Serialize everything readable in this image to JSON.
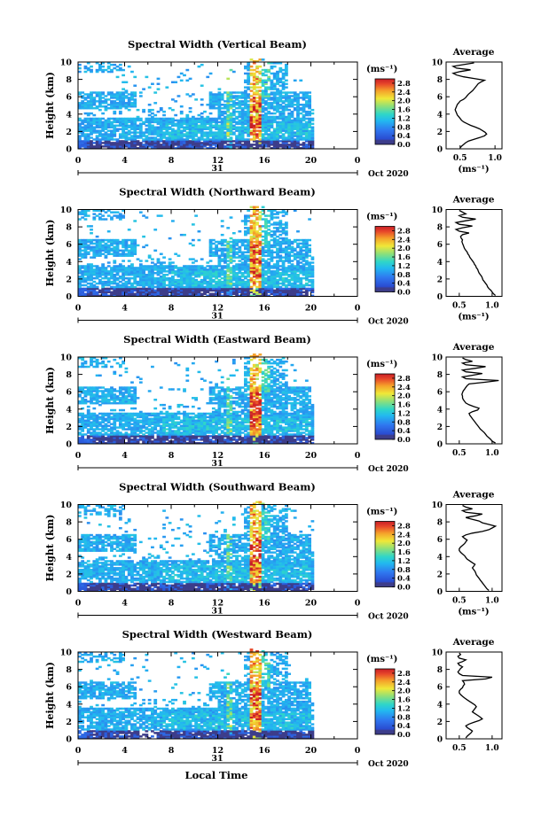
{
  "figure": {
    "xlabel": "Local Time",
    "date_day": "31",
    "date_label": "Oct 2020"
  },
  "chart_data": [
    {
      "type": "heatmap",
      "title": "Spectral Width (Vertical Beam)",
      "ylabel": "Height (km)",
      "x_ticks": [
        "0",
        "4",
        "8",
        "12",
        "16",
        "20",
        "0"
      ],
      "xlim": [
        0,
        24
      ],
      "y_ticks": [
        "0",
        "2",
        "4",
        "6",
        "8",
        "10"
      ],
      "ylim": [
        0,
        10
      ],
      "colorbar": {
        "unit": "(ms⁻¹)",
        "ticks": [
          "0.0",
          "0.4",
          "0.8",
          "1.2",
          "1.6",
          "2.0",
          "2.4",
          "2.8"
        ],
        "range": [
          0,
          3.0
        ]
      },
      "average": {
        "title": "Average",
        "xlabel": "(ms⁻¹)",
        "x_ticks": [
          "0.5",
          "1.0"
        ],
        "xlim": [
          0.3,
          1.1
        ],
        "profile": [
          0.5,
          0.52,
          0.55,
          0.58,
          0.62,
          0.7,
          0.78,
          0.85,
          0.88,
          0.86,
          0.82,
          0.78,
          0.72,
          0.65,
          0.6,
          0.55,
          0.52,
          0.5,
          0.48,
          0.46,
          0.45,
          0.44,
          0.43,
          0.44,
          0.45,
          0.46,
          0.48,
          0.5,
          0.55,
          0.58,
          0.6,
          0.62,
          0.65,
          0.68,
          0.7,
          0.72,
          0.74,
          0.76,
          0.8,
          0.85,
          0.7,
          0.55,
          0.45,
          0.4,
          0.5,
          0.65,
          0.45,
          0.4,
          0.55,
          0.7
        ]
      }
    },
    {
      "type": "heatmap",
      "title": "Spectral Width (Northward Beam)",
      "ylabel": "Height (km)",
      "x_ticks": [
        "0",
        "4",
        "8",
        "12",
        "16",
        "20",
        "0"
      ],
      "xlim": [
        0,
        24
      ],
      "y_ticks": [
        "0",
        "2",
        "4",
        "6",
        "8",
        "10"
      ],
      "ylim": [
        0,
        10
      ],
      "colorbar": {
        "unit": "(ms⁻¹)",
        "ticks": [
          "0.0",
          "0.4",
          "0.8",
          "1.2",
          "1.6",
          "2.0",
          "2.4",
          "2.8"
        ],
        "range": [
          0,
          3.0
        ]
      },
      "average": {
        "title": "Average",
        "xlabel": "(ms⁻¹)",
        "x_ticks": [
          "0.5",
          "1.0"
        ],
        "xlim": [
          0.3,
          1.15
        ],
        "profile": [
          1.05,
          1.02,
          1.0,
          0.98,
          0.95,
          0.93,
          0.92,
          0.9,
          0.88,
          0.86,
          0.85,
          0.84,
          0.82,
          0.8,
          0.79,
          0.78,
          0.76,
          0.75,
          0.73,
          0.72,
          0.7,
          0.68,
          0.66,
          0.65,
          0.63,
          0.62,
          0.6,
          0.58,
          0.57,
          0.56,
          0.55,
          0.54,
          0.55,
          0.53,
          0.52,
          0.55,
          0.65,
          0.5,
          0.45,
          0.55,
          0.7,
          0.5,
          0.45,
          0.6,
          0.75,
          0.55,
          0.5,
          0.6,
          0.55,
          0.5
        ]
      }
    },
    {
      "type": "heatmap",
      "title": "Spectral Width (Eastward Beam)",
      "ylabel": "Height (km)",
      "x_ticks": [
        "0",
        "4",
        "8",
        "12",
        "16",
        "20",
        "0"
      ],
      "xlim": [
        0,
        24
      ],
      "y_ticks": [
        "0",
        "2",
        "4",
        "6",
        "8",
        "10"
      ],
      "ylim": [
        0,
        10
      ],
      "colorbar": {
        "unit": "(ms⁻¹)",
        "ticks": [
          "0.0",
          "0.4",
          "0.8",
          "1.2",
          "1.6",
          "2.0",
          "2.4",
          "2.8"
        ],
        "range": [
          0,
          3.0
        ]
      },
      "average": {
        "title": "Average",
        "xlabel": "",
        "x_ticks": [
          "0.5",
          "1.0"
        ],
        "xlim": [
          0.3,
          1.15
        ],
        "profile": [
          1.05,
          1.0,
          0.98,
          0.95,
          0.92,
          0.9,
          0.88,
          0.85,
          0.82,
          0.8,
          0.78,
          0.76,
          0.74,
          0.72,
          0.7,
          0.68,
          0.66,
          0.65,
          0.7,
          0.78,
          0.8,
          0.72,
          0.65,
          0.6,
          0.58,
          0.56,
          0.55,
          0.55,
          0.54,
          0.55,
          0.56,
          0.58,
          0.6,
          0.62,
          0.65,
          0.9,
          1.1,
          0.6,
          0.55,
          0.7,
          0.85,
          0.6,
          0.55,
          0.75,
          0.9,
          0.6,
          0.55,
          0.7,
          0.6,
          0.55
        ]
      }
    },
    {
      "type": "heatmap",
      "title": "Spectral Width (Southward Beam)",
      "ylabel": "Height (km)",
      "x_ticks": [
        "0",
        "4",
        "8",
        "12",
        "16",
        "20",
        "0"
      ],
      "xlim": [
        0,
        24
      ],
      "y_ticks": [
        "0",
        "2",
        "4",
        "6",
        "8",
        "10"
      ],
      "ylim": [
        0,
        10
      ],
      "colorbar": {
        "unit": "(ms⁻¹)",
        "ticks": [
          "0.0",
          "0.4",
          "0.8",
          "1.2",
          "1.6",
          "2.0",
          "2.4",
          "2.8"
        ],
        "range": [
          0,
          3.0
        ]
      },
      "average": {
        "title": "Average",
        "xlabel": "(ms⁻¹)",
        "x_ticks": [
          "0.5",
          "1.0"
        ],
        "xlim": [
          0.3,
          1.15
        ],
        "profile": [
          0.95,
          0.92,
          0.9,
          0.88,
          0.86,
          0.84,
          0.82,
          0.8,
          0.78,
          0.76,
          0.75,
          0.74,
          0.72,
          0.7,
          0.72,
          0.74,
          0.7,
          0.66,
          0.62,
          0.6,
          0.58,
          0.55,
          0.52,
          0.5,
          0.5,
          0.52,
          0.55,
          0.58,
          0.6,
          0.62,
          0.58,
          0.55,
          0.6,
          0.7,
          0.85,
          0.95,
          1.0,
          1.05,
          0.95,
          0.85,
          0.8,
          0.7,
          0.6,
          0.75,
          0.85,
          0.6,
          0.55,
          0.7,
          0.6,
          0.55
        ]
      }
    },
    {
      "type": "heatmap",
      "title": "Spectral Width (Westward Beam)",
      "ylabel": "Height (km)",
      "x_ticks": [
        "0",
        "4",
        "8",
        "12",
        "16",
        "20",
        "0"
      ],
      "xlim": [
        0,
        24
      ],
      "y_ticks": [
        "0",
        "2",
        "4",
        "6",
        "8",
        "10"
      ],
      "ylim": [
        0,
        10
      ],
      "colorbar": {
        "unit": "(ms⁻¹)",
        "ticks": [
          "0.0",
          "0.4",
          "0.8",
          "1.2",
          "1.6",
          "2.0",
          "2.4",
          "2.8"
        ],
        "range": [
          0,
          3.0
        ]
      },
      "average": {
        "title": "Average",
        "xlabel": "",
        "x_ticks": [
          "0.5",
          "1.0"
        ],
        "xlim": [
          0.3,
          1.15
        ],
        "profile": [
          0.6,
          0.62,
          0.65,
          0.68,
          0.7,
          0.66,
          0.62,
          0.6,
          0.65,
          0.72,
          0.8,
          0.85,
          0.82,
          0.78,
          0.74,
          0.7,
          0.72,
          0.74,
          0.76,
          0.74,
          0.7,
          0.66,
          0.62,
          0.58,
          0.55,
          0.52,
          0.5,
          0.5,
          0.52,
          0.55,
          0.56,
          0.58,
          0.57,
          0.55,
          0.9,
          1.0,
          0.55,
          0.5,
          0.48,
          0.5,
          0.52,
          0.55,
          0.5,
          0.48,
          0.55,
          0.6,
          0.5,
          0.48,
          0.52,
          0.5
        ]
      }
    }
  ]
}
